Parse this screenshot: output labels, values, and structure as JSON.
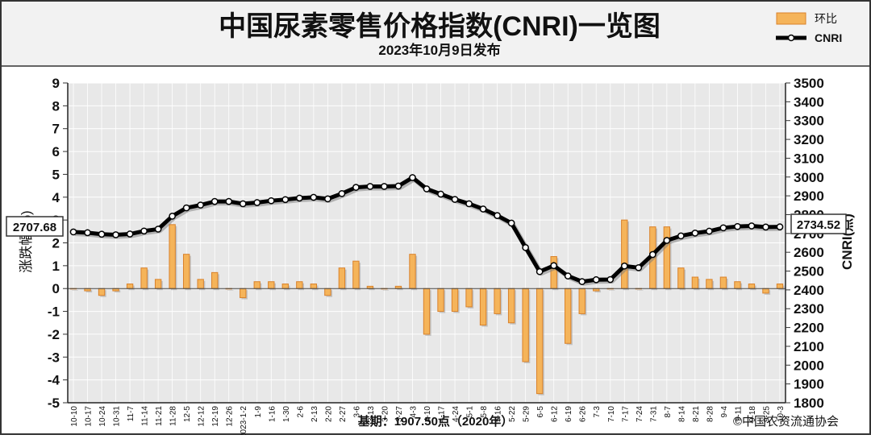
{
  "header": {
    "title": "中国尿素零售价格指数(CNRI)一览图",
    "subtitle": "2023年10月9日发布"
  },
  "legend": {
    "bar_label": "环比",
    "line_label": "CNRI"
  },
  "footer": {
    "base": "基期：1907.50点（2020年）",
    "copyright": "©中国农资流通协会"
  },
  "callouts": {
    "left": "2707.68",
    "right": "2734.52"
  },
  "colors": {
    "bar_fill": "#f5b45a",
    "bar_edge": "#d9822b",
    "line": "#000000",
    "plot_bg": "#e8e8e8"
  },
  "chart_data": {
    "type": "bar",
    "ylabel_left": "涨跌幅(%)",
    "ylabel_right": "CNRI(点)",
    "ylim_left": [
      -5,
      9
    ],
    "ylim_right": [
      1800,
      3500
    ],
    "yticks_left": [
      "-5",
      "-4",
      "-3",
      "-2",
      "-1",
      "0",
      "1",
      "2",
      "3",
      "4",
      "5",
      "6",
      "7",
      "8",
      "9"
    ],
    "yticks_right": [
      "1800",
      "1900",
      "2000",
      "2100",
      "2200",
      "2300",
      "2400",
      "2500",
      "2600",
      "2700",
      "2800",
      "2900",
      "3000",
      "3100",
      "3200",
      "3300",
      "3400",
      "3500"
    ],
    "categories": [
      "10-10",
      "10-17",
      "10-24",
      "10-31",
      "11-7",
      "11-14",
      "11-21",
      "11-28",
      "12-5",
      "12-12",
      "12-19",
      "12-26",
      "2023-1-2",
      "1-9",
      "1-16",
      "1-30",
      "2-6",
      "2-13",
      "2-20",
      "2-27",
      "3-6",
      "3-13",
      "3-20",
      "3-27",
      "4-3",
      "4-10",
      "4-17",
      "4-24",
      "5-1",
      "5-8",
      "5-16",
      "5-22",
      "5-29",
      "6-5",
      "6-12",
      "6-19",
      "6-26",
      "7-3",
      "7-10",
      "7-17",
      "7-24",
      "7-31",
      "8-7",
      "8-14",
      "8-21",
      "8-28",
      "9-4",
      "9-11",
      "9-18",
      "9-25",
      "10-3"
    ],
    "series": [
      {
        "name": "环比",
        "values": [
          0.0,
          -0.1,
          -0.3,
          -0.1,
          0.2,
          0.9,
          0.4,
          2.8,
          1.5,
          0.4,
          0.7,
          0.0,
          -0.4,
          0.3,
          0.3,
          0.2,
          0.3,
          0.2,
          -0.3,
          0.9,
          1.2,
          0.1,
          0.0,
          0.1,
          1.5,
          -2.0,
          -1.0,
          -1.0,
          -0.8,
          -1.6,
          -1.1,
          -1.5,
          -3.2,
          -4.6,
          1.4,
          -2.4,
          -1.1,
          -0.1,
          0.0,
          3.0,
          0.0,
          2.7,
          2.7,
          0.9,
          0.5,
          0.4,
          0.5,
          0.3,
          0.2,
          -0.2,
          0.2
        ]
      },
      {
        "name": "CNRI",
        "values": [
          2708,
          2704,
          2696,
          2693,
          2697,
          2713,
          2723,
          2792,
          2836,
          2851,
          2870,
          2870,
          2858,
          2864,
          2874,
          2880,
          2888,
          2892,
          2884,
          2912,
          2945,
          2950,
          2950,
          2952,
          2997,
          2937,
          2909,
          2881,
          2858,
          2830,
          2795,
          2755,
          2625,
          2497,
          2529,
          2474,
          2444,
          2454,
          2455,
          2527,
          2518,
          2588,
          2663,
          2687,
          2702,
          2712,
          2730,
          2737,
          2740,
          2734,
          2735
        ]
      }
    ]
  }
}
